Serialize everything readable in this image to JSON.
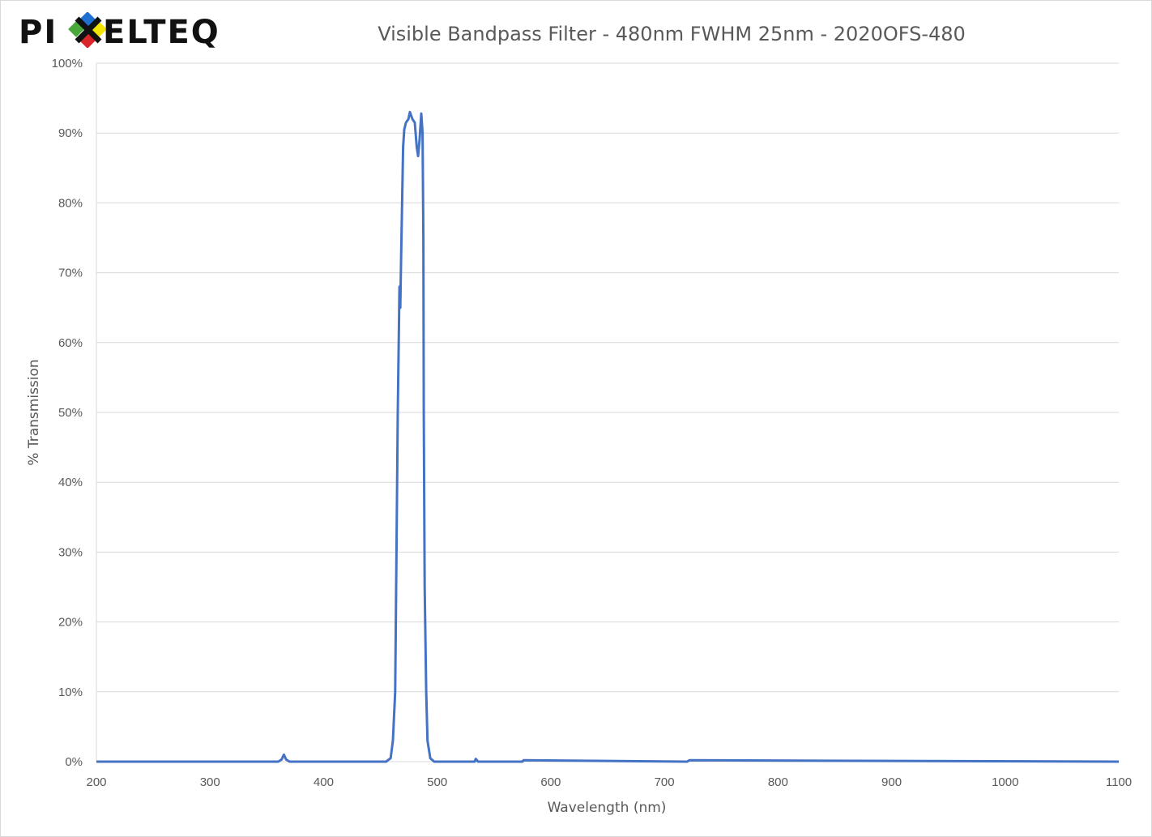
{
  "logo": {
    "text": "PIXELTEQ",
    "colors": [
      "#1f6fd1",
      "#f2e500",
      "#d9262a",
      "#4aa83a"
    ]
  },
  "chart_data": {
    "type": "line",
    "title": "Visible Bandpass Filter - 480nm FWHM 25nm - 2020OFS-480",
    "xlabel": "Wavelength (nm)",
    "ylabel": "% Transmission",
    "xlim": [
      200,
      1100
    ],
    "ylim": [
      0,
      100
    ],
    "xticks": [
      200,
      300,
      400,
      500,
      600,
      700,
      800,
      900,
      1000,
      1100
    ],
    "yticks": [
      "0%",
      "10%",
      "20%",
      "30%",
      "40%",
      "50%",
      "60%",
      "70%",
      "80%",
      "90%",
      "100%"
    ],
    "grid": "horizontal",
    "line_color": "#4472c4",
    "series": [
      {
        "x": [
          200,
          300,
          360,
          363,
          365,
          367,
          370,
          400,
          455,
          459,
          461,
          463,
          465.3,
          466.8,
          467.5,
          468.2,
          470,
          471,
          472.5,
          474.6,
          476,
          478.2,
          480.3,
          482,
          483.2,
          484.5,
          486,
          487.1,
          487.8,
          488.2,
          489,
          490.3,
          491.5,
          493.9,
          497.4,
          533,
          534,
          536,
          575,
          576,
          720,
          722,
          1100
        ],
        "y": [
          0,
          0,
          0,
          0.3,
          1.0,
          0.3,
          0,
          0,
          0,
          0.5,
          3,
          10,
          50,
          68,
          65,
          72,
          88,
          90.5,
          91.5,
          92,
          93,
          92,
          91.5,
          88,
          86.7,
          89,
          92.8,
          90,
          75,
          50,
          25,
          10,
          3,
          0.5,
          0,
          0,
          0.4,
          0,
          0,
          0.2,
          0,
          0.2,
          0
        ]
      }
    ]
  }
}
